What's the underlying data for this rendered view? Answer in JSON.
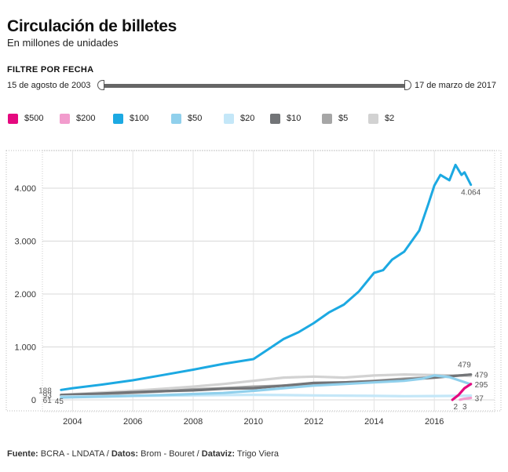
{
  "header": {
    "title": "Circulación de billetes",
    "subtitle": "En millones de unidades"
  },
  "filter": {
    "label": "FILTRE POR FECHA",
    "start": "15 de agosto de 2003",
    "end": "17 de marzo de 2017"
  },
  "legend": [
    {
      "label": "$500",
      "color": "#e5097f"
    },
    {
      "label": "$200",
      "color": "#f29ccd"
    },
    {
      "label": "$100",
      "color": "#1ca9e2"
    },
    {
      "label": "$50",
      "color": "#90d0ec"
    },
    {
      "label": "$20",
      "color": "#c4e7f8"
    },
    {
      "label": "$10",
      "color": "#727477"
    },
    {
      "label": "$5",
      "color": "#a6a6a6"
    },
    {
      "label": "$2",
      "color": "#d2d2d2"
    }
  ],
  "footer": {
    "source_label": "Fuente:",
    "source": "BCRA - LNDATA",
    "data_label": "Datos:",
    "data": "Brom - Bouret",
    "dataviz_label": "Dataviz:",
    "dataviz": "Trigo Viera"
  },
  "chart_data": {
    "type": "line",
    "title": "Circulación de billetes",
    "subtitle": "En millones de unidades",
    "xlabel": "",
    "ylabel": "",
    "xlim": [
      2003.0,
      2018.0
    ],
    "ylim": [
      -150,
      4600
    ],
    "x_ticks": [
      2004,
      2006,
      2008,
      2010,
      2012,
      2014,
      2016
    ],
    "x_tick_labels": [
      "2004",
      "2006",
      "2008",
      "2010",
      "2012",
      "2014",
      "2016"
    ],
    "y_ticks": [
      0,
      1000,
      2000,
      3000,
      4000
    ],
    "y_tick_labels": [
      "0",
      "1.000",
      "2.000",
      "3.000",
      "4.000"
    ],
    "grid": true,
    "legend_position": "top",
    "series": [
      {
        "name": "$2",
        "color": "#d2d2d2",
        "x": [
          2003.62,
          2005,
          2006,
          2007,
          2008,
          2009,
          2010,
          2011,
          2012,
          2013,
          2014,
          2015,
          2016,
          2016.8,
          2017.21
        ],
        "y": [
          95,
          140,
          170,
          210,
          250,
          300,
          360,
          420,
          440,
          420,
          460,
          480,
          470,
          460,
          450
        ]
      },
      {
        "name": "$5",
        "color": "#a6a6a6",
        "x": [
          2003.62,
          2005,
          2006,
          2007,
          2008,
          2009,
          2010,
          2011,
          2012,
          2013,
          2014,
          2015,
          2016,
          2016.5,
          2017.21
        ],
        "y": [
          85,
          110,
          130,
          160,
          200,
          220,
          250,
          270,
          300,
          330,
          360,
          400,
          430,
          445,
          479
        ]
      },
      {
        "name": "$10",
        "color": "#727477",
        "x": [
          2003.62,
          2005,
          2006,
          2007,
          2008,
          2009,
          2010,
          2011,
          2012,
          2013,
          2014,
          2015,
          2016,
          2017.21
        ],
        "y": [
          93,
          120,
          145,
          165,
          180,
          210,
          220,
          270,
          320,
          330,
          350,
          380,
          420,
          479
        ]
      },
      {
        "name": "$20",
        "color": "#c4e7f8",
        "x": [
          2003.62,
          2005,
          2007,
          2009,
          2010,
          2011,
          2012,
          2013,
          2014,
          2015,
          2016,
          2016.8,
          2017.21
        ],
        "y": [
          61,
          70,
          80,
          90,
          95,
          90,
          85,
          80,
          75,
          70,
          72,
          75,
          80
        ]
      },
      {
        "name": "$50",
        "color": "#90d0ec",
        "x": [
          2003.62,
          2005,
          2007,
          2009,
          2010,
          2011,
          2012,
          2013,
          2014,
          2015,
          2015.6,
          2016,
          2016.5,
          2017.21
        ],
        "y": [
          45,
          60,
          90,
          130,
          170,
          220,
          270,
          300,
          330,
          360,
          400,
          460,
          430,
          295
        ]
      },
      {
        "name": "$100",
        "color": "#1ca9e2",
        "x": [
          2003.62,
          2004,
          2005,
          2006,
          2007,
          2008,
          2009,
          2010,
          2010.5,
          2011,
          2011.5,
          2012,
          2012.5,
          2013,
          2013.5,
          2014,
          2014.3,
          2014.6,
          2015,
          2015.5,
          2015.8,
          2016,
          2016.2,
          2016.5,
          2016.7,
          2016.9,
          2017.0,
          2017.21
        ],
        "y": [
          188,
          220,
          290,
          370,
          470,
          570,
          680,
          770,
          960,
          1150,
          1280,
          1450,
          1650,
          1800,
          2050,
          2400,
          2450,
          2650,
          2800,
          3200,
          3700,
          4050,
          4250,
          4150,
          4440,
          4250,
          4300,
          4064
        ]
      },
      {
        "name": "$200",
        "color": "#f29ccd",
        "x": [
          2016.85,
          2017.0,
          2017.21
        ],
        "y": [
          3,
          20,
          37
        ]
      },
      {
        "name": "$500",
        "color": "#e5097f",
        "x": [
          2016.6,
          2016.8,
          2017.0,
          2017.21
        ],
        "y": [
          2,
          90,
          220,
          300
        ]
      }
    ],
    "annotations": [
      {
        "x": 2003.62,
        "y": 188,
        "text": "188",
        "side": "left"
      },
      {
        "x": 2003.62,
        "y": 93,
        "text": "93",
        "side": "left"
      },
      {
        "x": 2003.62,
        "y": 61,
        "text": "61",
        "side": "left"
      },
      {
        "x": 2003.62,
        "y": 45,
        "text": "45",
        "side": "left-inner"
      },
      {
        "x": 2017.21,
        "y": 4064,
        "text": "4.064",
        "side": "below"
      },
      {
        "x": 2017.1,
        "y": 479,
        "text": "479",
        "side": "above"
      },
      {
        "x": 2017.21,
        "y": 479,
        "text": "479",
        "side": "right"
      },
      {
        "x": 2017.21,
        "y": 295,
        "text": "295",
        "side": "right"
      },
      {
        "x": 2017.21,
        "y": 37,
        "text": "37",
        "side": "right"
      },
      {
        "x": 2016.6,
        "y": 2,
        "text": "2",
        "side": "below"
      },
      {
        "x": 2016.9,
        "y": 3,
        "text": "3",
        "side": "below"
      }
    ]
  }
}
